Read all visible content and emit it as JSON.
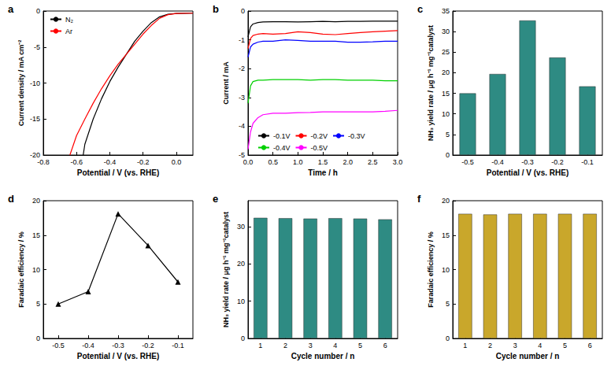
{
  "chart_data": [
    {
      "panel_label": "a",
      "type": "line",
      "xlabel": "Potential / V (vs. RHE)",
      "ylabel": "Current density / mA cm⁻²",
      "xlim": [
        -0.8,
        0.1
      ],
      "xticks": [
        -0.8,
        -0.6,
        -0.4,
        -0.2,
        {
          "value": 0,
          "label": "0.0"
        }
      ],
      "ylim": [
        -20,
        0
      ],
      "yticks": [
        -20,
        -15,
        -10,
        -5,
        0
      ],
      "grid": false,
      "legend": "upper left",
      "series": [
        {
          "name": "N₂",
          "color": "#000000",
          "x": [
            0.1,
            0.0,
            -0.05,
            -0.1,
            -0.15,
            -0.2,
            -0.25,
            -0.3,
            -0.35,
            -0.4,
            -0.45,
            -0.5,
            -0.55,
            -0.56
          ],
          "values": [
            -0.3,
            -0.35,
            -0.45,
            -0.8,
            -1.6,
            -2.8,
            -4.2,
            -6.0,
            -7.8,
            -9.8,
            -12.2,
            -15,
            -18.5,
            -20
          ]
        },
        {
          "name": "Ar",
          "color": "#ff0000",
          "x": [
            0.1,
            0.0,
            -0.05,
            -0.1,
            -0.15,
            -0.2,
            -0.25,
            -0.3,
            -0.35,
            -0.4,
            -0.45,
            -0.5,
            -0.55,
            -0.6,
            -0.64
          ],
          "values": [
            -0.3,
            -0.35,
            -0.5,
            -1.0,
            -2.0,
            -3.2,
            -4.6,
            -6.0,
            -7.4,
            -9.0,
            -10.8,
            -12.8,
            -15,
            -17.3,
            -20
          ]
        }
      ]
    },
    {
      "panel_label": "b",
      "type": "line",
      "xlabel": "Time / h",
      "ylabel": "Current / mA",
      "xlim": [
        0,
        3
      ],
      "xticks": [
        {
          "value": 0,
          "label": "0.0"
        },
        {
          "value": 0.5,
          "label": "0.5"
        },
        {
          "value": 1,
          "label": "1.0"
        },
        {
          "value": 1.5,
          "label": "1.5"
        },
        {
          "value": 2,
          "label": "2.0"
        },
        {
          "value": 2.5,
          "label": "2.5"
        },
        {
          "value": 3,
          "label": "3.0"
        }
      ],
      "ylim": [
        -5,
        0
      ],
      "yticks": [
        -5,
        -4,
        -3,
        -2,
        -1,
        0
      ],
      "grid": false,
      "legend": "lower right",
      "x": [
        0,
        0.05,
        0.1,
        0.2,
        0.3,
        0.5,
        0.75,
        1.0,
        1.25,
        1.5,
        1.75,
        2.0,
        2.25,
        2.5,
        2.75,
        3.0
      ],
      "series": [
        {
          "name": "-0.1V",
          "color": "#000000",
          "values": [
            -0.9,
            -0.55,
            -0.45,
            -0.4,
            -0.38,
            -0.37,
            -0.37,
            -0.38,
            -0.37,
            -0.36,
            -0.37,
            -0.36,
            -0.36,
            -0.35,
            -0.35,
            -0.35
          ]
        },
        {
          "name": "-0.2V",
          "color": "#ff0000",
          "values": [
            -1.3,
            -0.95,
            -0.85,
            -0.8,
            -0.78,
            -0.8,
            -0.78,
            -0.72,
            -0.75,
            -0.8,
            -0.82,
            -0.78,
            -0.75,
            -0.72,
            -0.7,
            -0.68
          ]
        },
        {
          "name": "-0.3V",
          "color": "#0000ff",
          "values": [
            -1.6,
            -1.25,
            -1.15,
            -1.08,
            -1.05,
            -1.05,
            -1.0,
            -1.02,
            -1.05,
            -1.05,
            -1.05,
            -1.08,
            -1.08,
            -1.07,
            -1.05,
            -1.05
          ]
        },
        {
          "name": "-0.4V",
          "color": "#00d000",
          "values": [
            -3.2,
            -2.6,
            -2.45,
            -2.4,
            -2.4,
            -2.38,
            -2.38,
            -2.38,
            -2.4,
            -2.38,
            -2.38,
            -2.4,
            -2.4,
            -2.4,
            -2.42,
            -2.42
          ]
        },
        {
          "name": "-0.5V",
          "color": "#ff00ff",
          "values": [
            -4.8,
            -4.2,
            -3.9,
            -3.7,
            -3.6,
            -3.55,
            -3.55,
            -3.53,
            -3.52,
            -3.5,
            -3.5,
            -3.5,
            -3.5,
            -3.5,
            -3.48,
            -3.45
          ]
        }
      ]
    },
    {
      "panel_label": "c",
      "type": "bar",
      "xlabel": "Potential / V (vs. RHE)",
      "ylabel": "NH₃ yield rate / μg h⁻¹ mg⁻¹catalyst",
      "categories": [
        "-0.5",
        "-0.4",
        "-0.3",
        "-0.2",
        "-0.1"
      ],
      "values": [
        15,
        19.7,
        32.7,
        23.7,
        16.7
      ],
      "color": "#2e8b83",
      "ylim": [
        0,
        35
      ],
      "yticks": [
        0,
        5,
        10,
        15,
        20,
        25,
        30,
        35
      ],
      "grid": false
    },
    {
      "panel_label": "d",
      "type": "line",
      "xlabel": "Potential / V (vs. RHE)",
      "ylabel": "Faradaic efficiency / %",
      "categories": [
        "-0.5",
        "-0.4",
        "-0.3",
        "-0.2",
        "-0.1"
      ],
      "values": [
        5.0,
        6.8,
        18.1,
        13.5,
        8.2
      ],
      "color": "#000000",
      "marker": "triangle",
      "ylim": [
        0,
        20
      ],
      "yticks": [
        0,
        5,
        10,
        15,
        20
      ],
      "grid": false
    },
    {
      "panel_label": "e",
      "type": "bar",
      "xlabel": "Cycle number / n",
      "ylabel": "NH₃ yield rate / μg h⁻¹ mg⁻¹catalyst",
      "categories": [
        "1",
        "2",
        "3",
        "4",
        "5",
        "6"
      ],
      "values": [
        32.4,
        32.3,
        32.2,
        32.3,
        32.2,
        32.0
      ],
      "color": "#2e8b83",
      "ylim": [
        0,
        37
      ],
      "yticks": [
        0,
        10,
        20,
        30
      ],
      "grid": false
    },
    {
      "panel_label": "f",
      "type": "bar",
      "xlabel": "Cycle number / n",
      "ylabel": "Faradaic efficiency / %",
      "categories": [
        "1",
        "2",
        "3",
        "4",
        "5",
        "6"
      ],
      "values": [
        18.1,
        18.0,
        18.1,
        18.1,
        18.1,
        18.1
      ],
      "color": "#c9a72b",
      "ylim": [
        0,
        20
      ],
      "yticks": [
        0,
        5,
        10,
        15,
        20
      ],
      "grid": false
    }
  ]
}
